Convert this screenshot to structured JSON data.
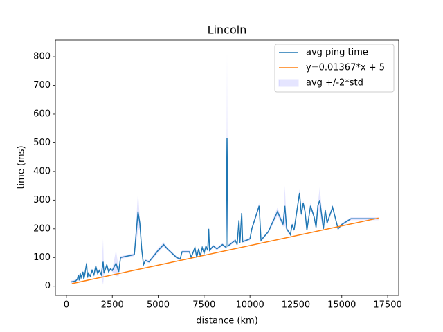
{
  "chart_data": {
    "type": "line",
    "title": "Lincoln",
    "x_label": "distance (km)",
    "y_label": "time (ms)",
    "xlim": [
      -600,
      18100
    ],
    "ylim": [
      -32,
      858
    ],
    "xticks": [
      0,
      2500,
      5000,
      7500,
      10000,
      12500,
      15000,
      17500
    ],
    "yticks": [
      0,
      100,
      200,
      300,
      400,
      500,
      600,
      700,
      800
    ],
    "legend": "upper right",
    "series": [
      {
        "name": "avg ping time",
        "color": "#1f77b4",
        "x": [
          250,
          500,
          600,
          650,
          700,
          750,
          800,
          900,
          950,
          1000,
          1100,
          1150,
          1200,
          1300,
          1400,
          1500,
          1600,
          1700,
          1800,
          1900,
          2000,
          2050,
          2200,
          2300,
          2400,
          2500,
          2700,
          2850,
          2950,
          3700,
          3900,
          4000,
          4100,
          4200,
          4300,
          4500,
          5000,
          5300,
          5500,
          6000,
          6200,
          6300,
          6700,
          6800,
          7000,
          7100,
          7200,
          7300,
          7400,
          7500,
          7600,
          7700,
          7750,
          7800,
          8000,
          8200,
          8500,
          8700,
          8750,
          8800,
          9000,
          9200,
          9300,
          9400,
          9450,
          9550,
          9600,
          9800,
          10000,
          10100,
          10500,
          10600,
          11000,
          11500,
          11800,
          11900,
          12000,
          12200,
          12300,
          12400,
          12700,
          12800,
          12900,
          13000,
          13100,
          13300,
          13500,
          13600,
          13700,
          13800,
          14000,
          14100,
          14200,
          14500,
          14800,
          15000,
          15500,
          16000,
          17000
        ],
        "values": [
          15,
          18,
          25,
          40,
          20,
          45,
          30,
          50,
          25,
          40,
          80,
          30,
          45,
          35,
          55,
          40,
          70,
          45,
          55,
          40,
          85,
          45,
          75,
          50,
          60,
          55,
          80,
          50,
          100,
          110,
          260,
          220,
          130,
          75,
          90,
          85,
          125,
          145,
          130,
          100,
          95,
          120,
          120,
          100,
          135,
          100,
          130,
          105,
          135,
          115,
          140,
          125,
          200,
          125,
          140,
          130,
          145,
          135,
          518,
          140,
          150,
          160,
          145,
          230,
          150,
          255,
          155,
          160,
          165,
          200,
          280,
          160,
          190,
          260,
          215,
          280,
          200,
          180,
          215,
          195,
          325,
          250,
          290,
          260,
          195,
          280,
          240,
          205,
          280,
          300,
          200,
          265,
          220,
          275,
          200,
          215,
          235,
          235,
          235
        ]
      },
      {
        "name": "y=0.01367*x + 5",
        "color": "#ff7f0e",
        "x": [
          300,
          17000
        ],
        "values": [
          9.1,
          237.39
        ]
      }
    ],
    "band": {
      "name": "avg +/-2*std",
      "color": "#0000ff",
      "opacity": 0.1,
      "halfwidth": [
        5,
        5,
        5,
        5,
        5,
        5,
        5,
        5,
        5,
        5,
        10,
        5,
        5,
        5,
        5,
        5,
        10,
        5,
        5,
        5,
        80,
        5,
        5,
        5,
        5,
        5,
        45,
        15,
        5,
        5,
        70,
        15,
        10,
        5,
        5,
        5,
        8,
        8,
        5,
        5,
        5,
        5,
        5,
        5,
        5,
        5,
        5,
        5,
        5,
        5,
        5,
        5,
        10,
        5,
        5,
        5,
        5,
        5,
        300,
        5,
        5,
        5,
        5,
        10,
        5,
        15,
        5,
        5,
        5,
        8,
        10,
        5,
        5,
        15,
        8,
        70,
        8,
        5,
        8,
        5,
        15,
        8,
        10,
        8,
        5,
        10,
        8,
        5,
        10,
        45,
        8,
        10,
        8,
        8,
        5,
        5,
        5,
        5,
        5
      ]
    }
  }
}
